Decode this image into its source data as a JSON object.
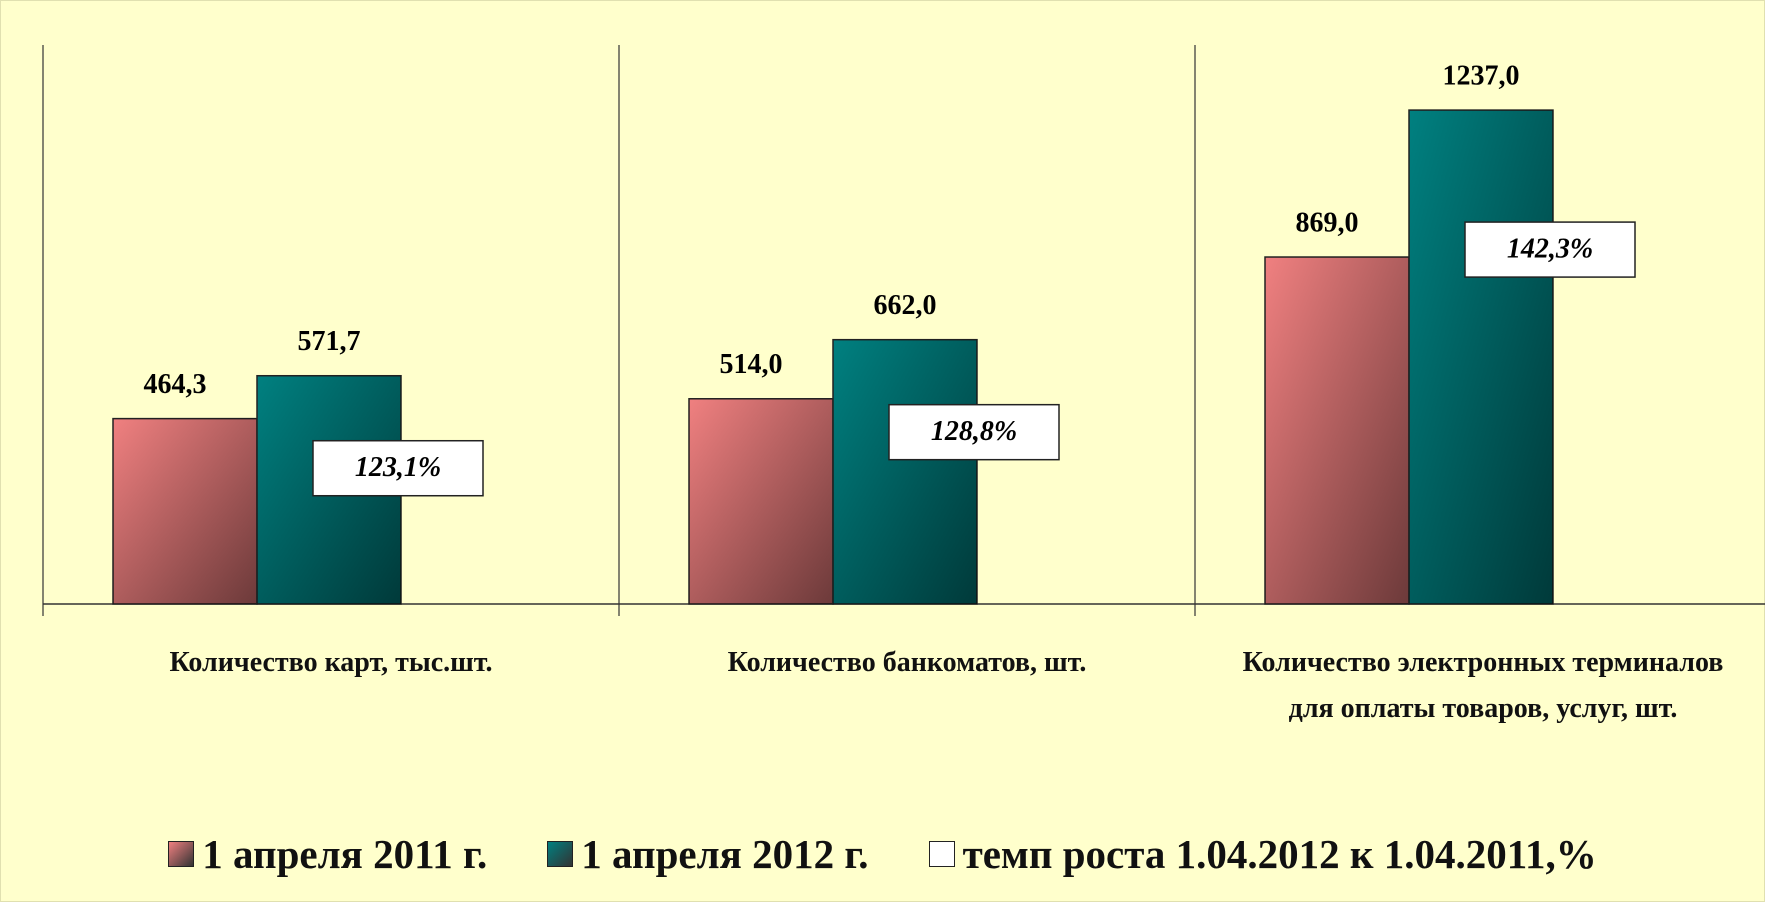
{
  "chart_data": {
    "type": "bar",
    "categories": [
      "Количество  карт, тыс.шт.",
      "Количество банкоматов, шт.",
      "Количество электронных терминалов для оплаты товаров, услуг, шт."
    ],
    "series": [
      {
        "name": "1 апреля 2011 г.",
        "color": "#f08080",
        "values": [
          464.3,
          514.0,
          869.0
        ],
        "value_labels": [
          "464,3",
          "514,0",
          "869,0"
        ]
      },
      {
        "name": "1 апреля 2012 г.",
        "color": "#008080",
        "values": [
          571.7,
          662.0,
          1237.0
        ],
        "value_labels": [
          "571,7",
          "662,0",
          "1237,0"
        ]
      },
      {
        "name": "темп роста 1.04.2012 к 1.04.2011,%",
        "color": "#ffffff",
        "values": [
          123.1,
          128.8,
          142.3
        ],
        "value_labels": [
          "123,1%",
          "128,8%",
          "142,3%"
        ]
      }
    ],
    "ylim": [
      0,
      1400
    ]
  }
}
